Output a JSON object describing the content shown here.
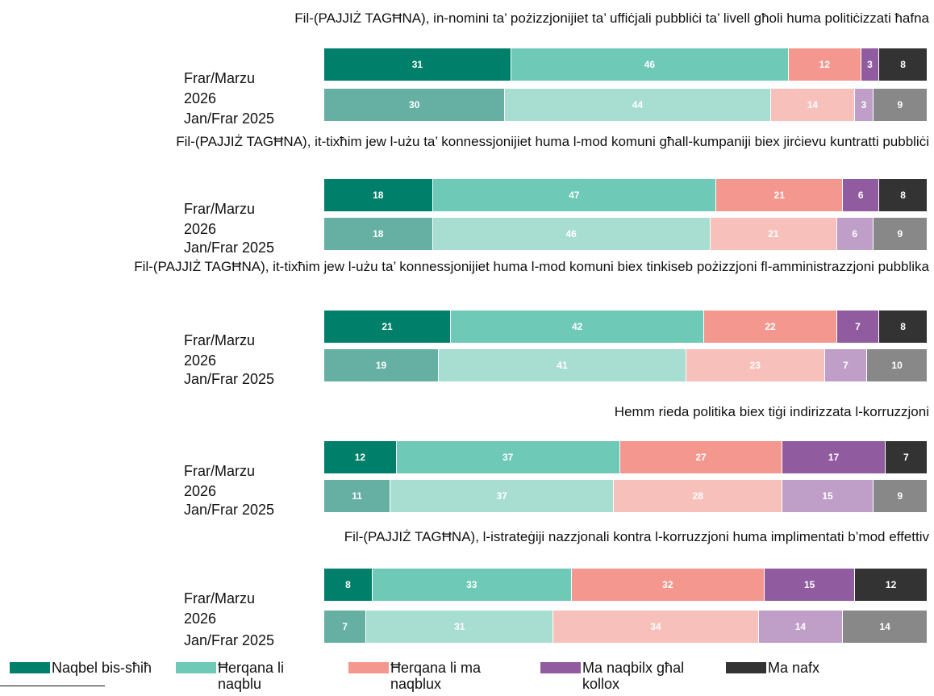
{
  "legend": {
    "series": [
      {
        "name": "Naqbel bis-sħiħ",
        "color": "#00806a",
        "light_color": "#66b0a3"
      },
      {
        "name": "Ħerqana li naqblu",
        "color": "#6ecab7",
        "light_color": "#a8ddd2"
      },
      {
        "name": "Ħerqana li ma naqblux",
        "color": "#f4978e",
        "light_color": "#f8c0bb"
      },
      {
        "name": "Ma naqbilx għal kollox",
        "color": "#915ba0",
        "light_color": "#bf9ec8"
      },
      {
        "name": "Ma nafx",
        "color": "#333333",
        "light_color": "#888888"
      }
    ]
  },
  "chart_data": [
    {
      "type": "bar",
      "orientation": "horizontal",
      "stacked": true,
      "xlim": [
        0,
        100
      ],
      "title": "Fil-(PAJJIŻ TAGĦNA), in-nomini ta’ pożizzjonijiet ta’ uffiċjali pubbliċi ta’ livell għoli huma politiċizzati ħafna",
      "categories": [
        "Frar/Marzu 2026",
        "Jan/Frar 2025"
      ],
      "series": [
        {
          "values": [
            31,
            30
          ]
        },
        {
          "values": [
            46,
            44
          ]
        },
        {
          "values": [
            12,
            14
          ]
        },
        {
          "values": [
            3,
            3
          ]
        },
        {
          "values": [
            8,
            9
          ]
        }
      ]
    },
    {
      "type": "bar",
      "orientation": "horizontal",
      "stacked": true,
      "xlim": [
        0,
        100
      ],
      "title": "Fil-(PAJJIŻ TAGĦNA), it-tixħim jew l-użu ta’ konnessjonijiet huma l-mod komuni għall-kumpaniji biex jirċievu kuntratti pubbliċi",
      "categories": [
        "Frar/Marzu 2026",
        "Jan/Frar 2025"
      ],
      "series": [
        {
          "values": [
            18,
            18
          ]
        },
        {
          "values": [
            47,
            46
          ]
        },
        {
          "values": [
            21,
            21
          ]
        },
        {
          "values": [
            6,
            6
          ]
        },
        {
          "values": [
            8,
            9
          ]
        }
      ]
    },
    {
      "type": "bar",
      "orientation": "horizontal",
      "stacked": true,
      "xlim": [
        0,
        100
      ],
      "title": "Fil-(PAJJIŻ TAGĦNA), it-tixħim jew l-użu ta’ konnessjonijiet huma l-mod komuni biex tinkiseb pożizzjoni fl-amministrazzjoni pubblika",
      "categories": [
        "Frar/Marzu 2026",
        "Jan/Frar 2025"
      ],
      "series": [
        {
          "values": [
            21,
            19
          ]
        },
        {
          "values": [
            42,
            41
          ]
        },
        {
          "values": [
            22,
            23
          ]
        },
        {
          "values": [
            7,
            7
          ]
        },
        {
          "values": [
            8,
            10
          ]
        }
      ]
    },
    {
      "type": "bar",
      "orientation": "horizontal",
      "stacked": true,
      "xlim": [
        0,
        100
      ],
      "title": "Hemm rieda politika biex tiġi indirizzata l-korruzzjoni",
      "categories": [
        "Frar/Marzu 2026",
        "Jan/Frar 2025"
      ],
      "series": [
        {
          "values": [
            12,
            11
          ]
        },
        {
          "values": [
            37,
            37
          ]
        },
        {
          "values": [
            27,
            28
          ]
        },
        {
          "values": [
            17,
            15
          ]
        },
        {
          "values": [
            7,
            9
          ]
        }
      ]
    },
    {
      "type": "bar",
      "orientation": "horizontal",
      "stacked": true,
      "xlim": [
        0,
        100
      ],
      "title": "Fil-(PAJJIŻ TAGĦNA), l-istrateġiji nazzjonali kontra l-korruzzjoni huma implimentati b’mod effettiv",
      "categories": [
        "Frar/Marzu 2026",
        "Jan/Frar 2025"
      ],
      "series": [
        {
          "values": [
            8,
            7
          ]
        },
        {
          "values": [
            33,
            31
          ]
        },
        {
          "values": [
            32,
            34
          ]
        },
        {
          "values": [
            15,
            14
          ]
        },
        {
          "values": [
            12,
            14
          ]
        }
      ]
    }
  ]
}
